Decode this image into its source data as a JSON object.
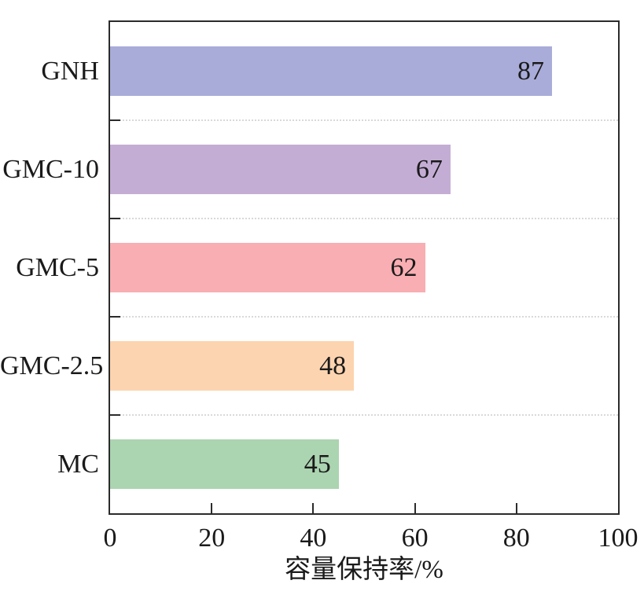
{
  "chart_data": {
    "type": "bar",
    "orientation": "horizontal",
    "title": "",
    "xlabel": "容量保持率/%",
    "ylabel": "",
    "categories": [
      "GNH",
      "GMC-10",
      "GMC-5",
      "GMC-2.5",
      "MC"
    ],
    "values": [
      87,
      67,
      62,
      48,
      45
    ],
    "value_labels": [
      "87",
      "67",
      "62",
      "48",
      "45"
    ],
    "bar_colors": [
      "#a9acd9",
      "#c4add5",
      "#f8aeb2",
      "#fdd4b0",
      "#abd4b0"
    ],
    "xlim": [
      0,
      100
    ],
    "xticks": [
      0,
      20,
      40,
      60,
      80,
      100
    ],
    "xtick_labels": [
      "0",
      "20",
      "40",
      "60",
      "80",
      "100"
    ],
    "grid": "dotted horizontal lines at category boundaries",
    "legend": "none",
    "frame": "full box"
  },
  "colors": {
    "axis": "#2b2b2b",
    "text": "#1a1a1a",
    "grid": "#d9d9d9",
    "background": "#ffffff"
  }
}
